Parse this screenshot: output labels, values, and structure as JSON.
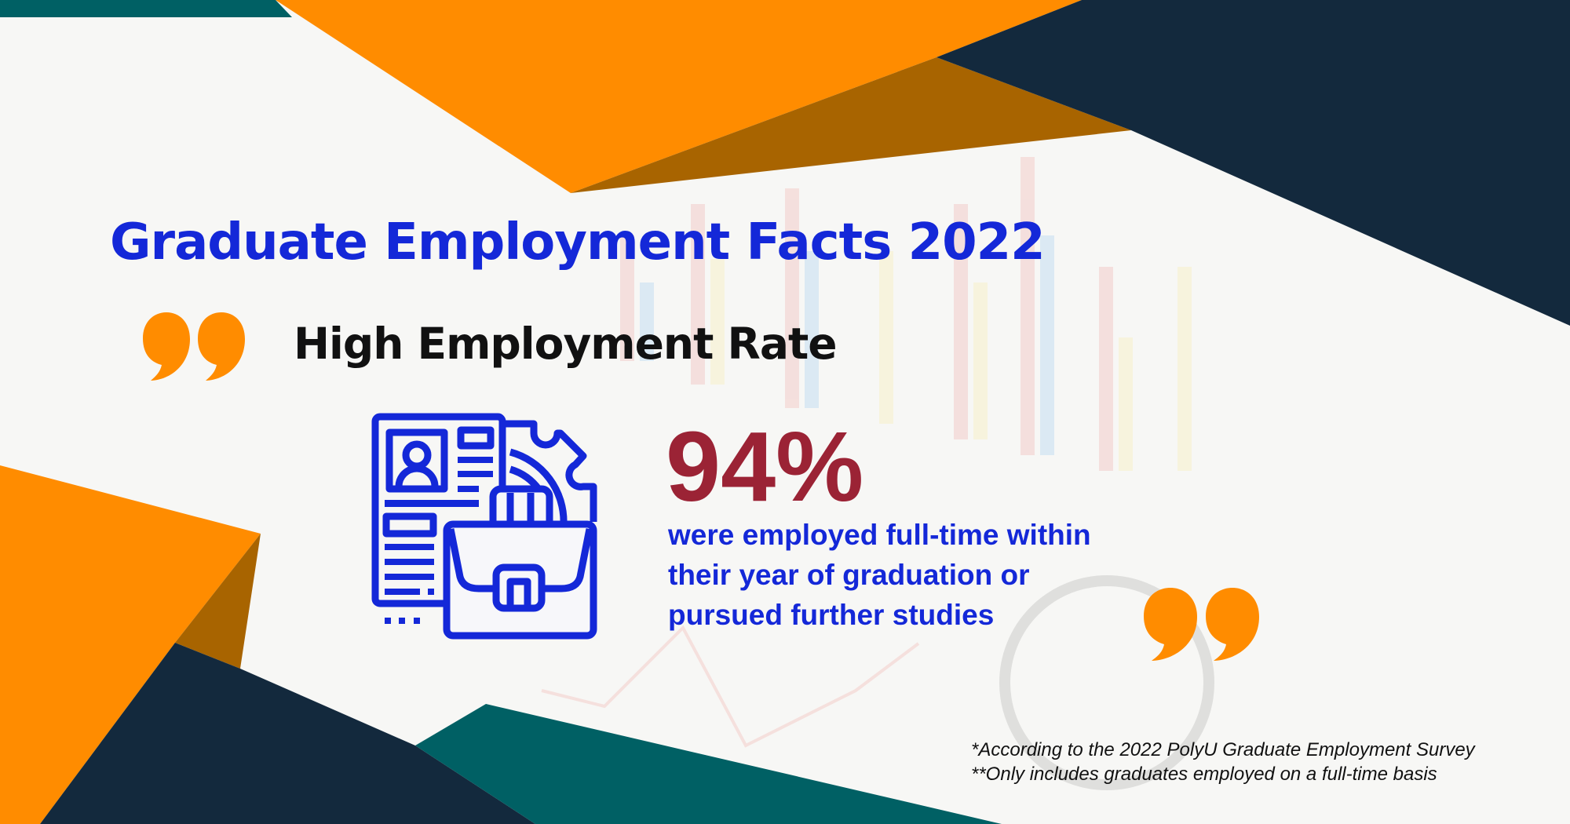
{
  "colors": {
    "title": "#1428d8",
    "subtitle": "#111111",
    "stat": "#9b2335",
    "description": "#1428d8",
    "orange": "#ff8c00",
    "dark_orange": "#a86400",
    "navy": "#13293d",
    "teal": "#006064",
    "quote_mark": "#ff8c00"
  },
  "title": "Graduate Employment Facts 2022",
  "section": {
    "heading": "High Employment Rate",
    "icon": "resume-briefcase-icon",
    "stat_value": "94%",
    "description_lines": [
      "were employed full-time within",
      "their year of graduation or",
      "pursued further studies"
    ]
  },
  "footnotes": [
    "*According to the 2022 PolyU Graduate Employment Survey",
    "**Only includes graduates employed on a full-time basis"
  ]
}
